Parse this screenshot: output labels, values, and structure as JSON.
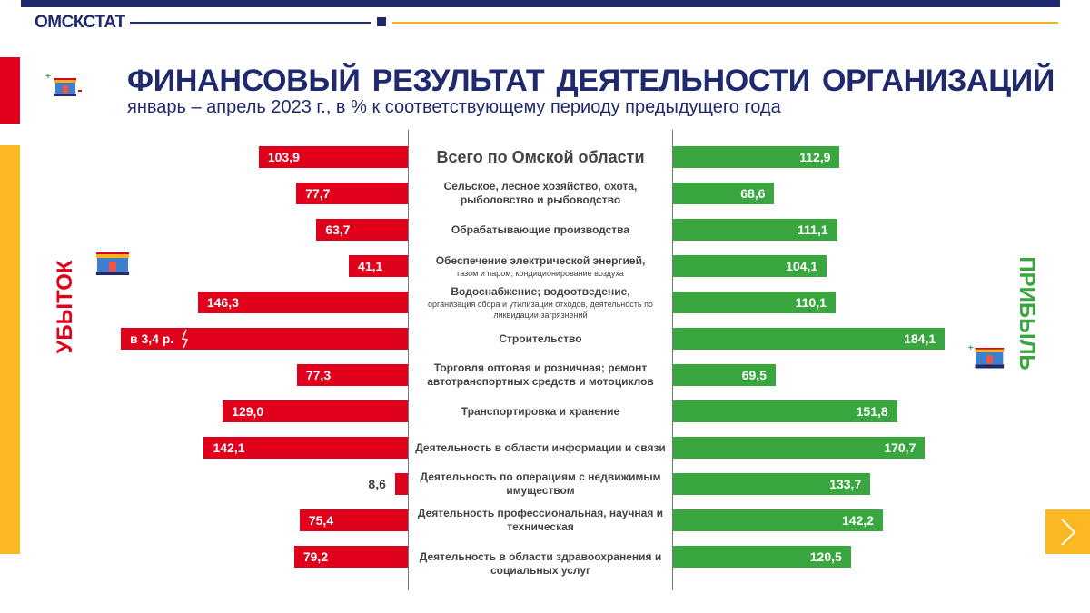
{
  "header": {
    "brand": "ОМСКСТАТ"
  },
  "title": "ФИНАНСОВЫЙ РЕЗУЛЬТАТ ДЕЯТЕЛЬНОСТИ ОРГАНИЗАЦИЙ",
  "subtitle": "январь – апрель 2023 г., в % к соответствующему периоду предыдущего года",
  "side_labels": {
    "loss": "УБЫТОК",
    "profit": "ПРИБЫЛЬ"
  },
  "colors": {
    "loss": "#e0001b",
    "profit": "#3aa63f",
    "navy": "#1f2a6e",
    "accent": "#fbb823"
  },
  "chart_data": {
    "type": "bar",
    "title": "ФИНАНСОВЫЙ РЕЗУЛЬТАТ ДЕЯТЕЛЬНОСТИ ОРГАНИЗАЦИЙ",
    "unit": "% к соответствующему периоду предыдущего года",
    "categories": [
      {
        "main": "Всего по Омской области",
        "sub": ""
      },
      {
        "main": "Сельское, лесное хозяйство, охота, рыболовство и рыбоводство",
        "sub": ""
      },
      {
        "main": "Обрабатывающие производства",
        "sub": ""
      },
      {
        "main": "Обеспечение электрической энергией,",
        "sub": "газом и паром; кондиционирование воздуха"
      },
      {
        "main": "Водоснабжение; водоотведение,",
        "sub": "организация сбора и утилизации отходов, деятельность по ликвидации загрязнений"
      },
      {
        "main": "Строительство",
        "sub": ""
      },
      {
        "main": "Торговля оптовая и розничная; ремонт автотранспортных средств и мотоциклов",
        "sub": ""
      },
      {
        "main": "Транспортировка и хранение",
        "sub": ""
      },
      {
        "main": "Деятельность в области информации и связи",
        "sub": ""
      },
      {
        "main": "Деятельность по операциям с недвижимым имуществом",
        "sub": ""
      },
      {
        "main": "Деятельность профессиональная, научная и техническая",
        "sub": ""
      },
      {
        "main": "Деятельность в области здравоохранения и социальных услуг",
        "sub": ""
      }
    ],
    "series": [
      {
        "name": "Убыток",
        "values": [
          103.9,
          77.7,
          63.7,
          41.1,
          146.3,
          340,
          77.3,
          129.0,
          142.1,
          8.6,
          75.4,
          79.2
        ],
        "labels": [
          "103,9",
          "77,7",
          "63,7",
          "41,1",
          "146,3",
          "в 3,4 р.",
          "77,3",
          "129,0",
          "142,1",
          "8,6",
          "75,4",
          "79,2"
        ]
      },
      {
        "name": "Прибыль",
        "values": [
          112.9,
          68.6,
          111.1,
          104.1,
          110.1,
          184.1,
          69.5,
          151.8,
          170.7,
          133.7,
          142.2,
          120.5
        ],
        "labels": [
          "112,9",
          "68,6",
          "111,1",
          "104,1",
          "110,1",
          "184,1",
          "69,5",
          "151,8",
          "170,7",
          "133,7",
          "142,2",
          "120,5"
        ]
      }
    ]
  }
}
